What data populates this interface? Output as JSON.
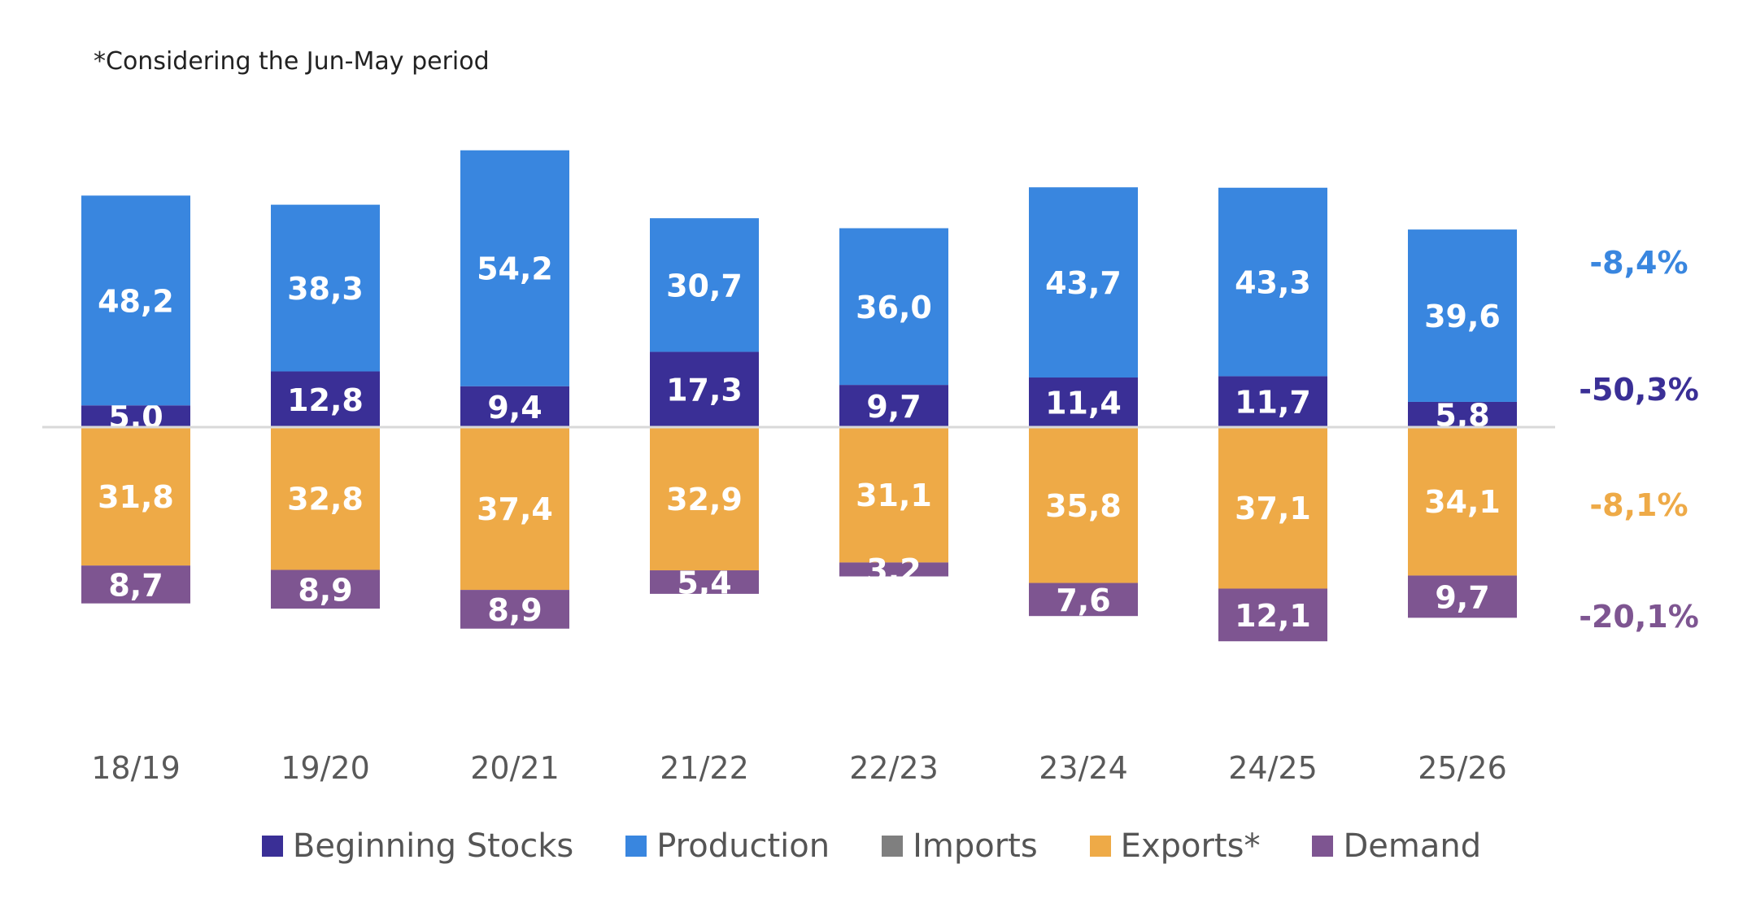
{
  "note": "*Considering the Jun-May period",
  "colors": {
    "beginning_stocks": "#3a2f96",
    "production": "#3986df",
    "imports": "#7f7f7f",
    "exports": "#eeaa47",
    "demand": "#7e5591",
    "baseline": "#d9d9d9",
    "axis_label": "#595959"
  },
  "legend": [
    {
      "label": "Beginning Stocks",
      "color": "#3a2f96"
    },
    {
      "label": "Production",
      "color": "#3986df"
    },
    {
      "label": "Imports",
      "color": "#7f7f7f"
    },
    {
      "label": "Exports*",
      "color": "#eeaa47"
    },
    {
      "label": "Demand",
      "color": "#7e5591"
    }
  ],
  "chart_data": {
    "type": "bar",
    "stacked": true,
    "diverging": true,
    "categories": [
      "18/19",
      "19/20",
      "20/21",
      "21/22",
      "22/23",
      "23/24",
      "24/25",
      "25/26"
    ],
    "series": [
      {
        "name": "Beginning Stocks",
        "direction": "up",
        "values": [
          5.0,
          12.8,
          9.4,
          17.3,
          9.7,
          11.4,
          11.7,
          5.8
        ],
        "labels": [
          "5,0",
          "12,8",
          "9,4",
          "17,3",
          "9,7",
          "11,4",
          "11,7",
          "5,8"
        ]
      },
      {
        "name": "Production",
        "direction": "up",
        "values": [
          48.2,
          38.3,
          54.2,
          30.7,
          36.0,
          43.7,
          43.3,
          39.6
        ],
        "labels": [
          "48,2",
          "38,3",
          "54,2",
          "30,7",
          "36,0",
          "43,7",
          "43,3",
          "39,6"
        ]
      },
      {
        "name": "Exports*",
        "direction": "down",
        "values": [
          31.8,
          32.8,
          37.4,
          32.9,
          31.1,
          35.8,
          37.1,
          34.1
        ],
        "labels": [
          "31,8",
          "32,8",
          "37,4",
          "32,9",
          "31,1",
          "35,8",
          "37,1",
          "34,1"
        ]
      },
      {
        "name": "Demand",
        "direction": "down",
        "values": [
          8.7,
          8.9,
          8.9,
          5.4,
          3.2,
          7.6,
          12.1,
          9.7
        ],
        "labels": [
          "8,7",
          "8,9",
          "8,9",
          "5,4",
          "3,2",
          "7,6",
          "12,1",
          "9,7"
        ]
      }
    ],
    "changes": [
      {
        "series": "Production",
        "label": "-8,4%",
        "color": "#3986df"
      },
      {
        "series": "Beginning Stocks",
        "label": "-50,3%",
        "color": "#3a2f96"
      },
      {
        "series": "Exports*",
        "label": "-8,1%",
        "color": "#eeaa47"
      },
      {
        "series": "Demand",
        "label": "-20,1%",
        "color": "#7e5591"
      }
    ],
    "grid": false,
    "legend_position": "bottom"
  }
}
